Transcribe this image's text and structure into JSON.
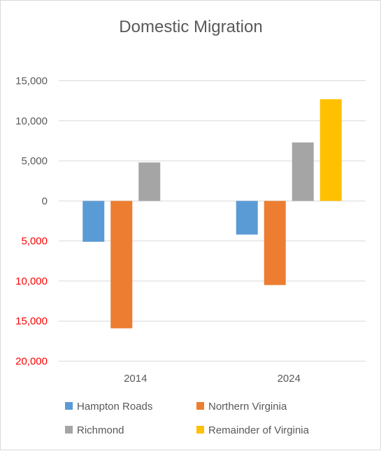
{
  "chart_data": {
    "type": "bar",
    "title": "Domestic Migration",
    "categories": [
      "2014",
      "2024"
    ],
    "series": [
      {
        "name": "Hampton Roads",
        "color": "#5b9bd5",
        "values": [
          -5100,
          -4200
        ]
      },
      {
        "name": "Northern Virginia",
        "color": "#ed7d31",
        "values": [
          -15900,
          -10500
        ]
      },
      {
        "name": "Richmond",
        "color": "#a5a5a5",
        "values": [
          4800,
          7300
        ]
      },
      {
        "name": "Remainder of Virginia",
        "color": "#ffc000",
        "values": [
          null,
          12700
        ]
      }
    ],
    "ylim": [
      -20000,
      15000
    ],
    "yticks": [
      {
        "value": 15000,
        "label": "15,000"
      },
      {
        "value": 10000,
        "label": "10,000"
      },
      {
        "value": 5000,
        "label": "5,000"
      },
      {
        "value": 0,
        "label": "0"
      },
      {
        "value": -5000,
        "label": "5,000"
      },
      {
        "value": -10000,
        "label": "10,000"
      },
      {
        "value": -15000,
        "label": "15,000"
      },
      {
        "value": -20000,
        "label": "20,000"
      }
    ],
    "ytick_color_positive": "#595959",
    "ytick_color_negative": "#ff0000",
    "gridlines": true,
    "legend_position": "bottom",
    "xlabel": "",
    "ylabel": ""
  }
}
